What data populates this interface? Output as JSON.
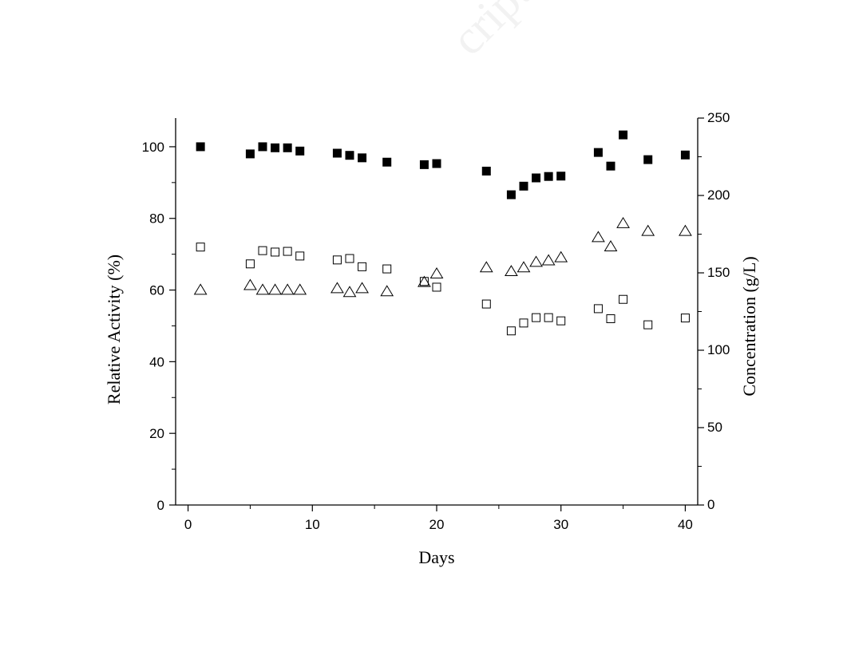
{
  "watermark": "cript",
  "chart_data": {
    "type": "scatter",
    "xlabel": "Days",
    "ylabel_left": "Relative Activity (%)",
    "ylabel_right": "Concentration (g/L)",
    "xlim": [
      -1,
      41
    ],
    "ylim_left": [
      0,
      108
    ],
    "ylim_right": [
      0,
      250
    ],
    "x_ticks": [
      0,
      10,
      20,
      30,
      40
    ],
    "y_left_ticks": [
      0,
      20,
      40,
      60,
      80,
      100
    ],
    "y_right_ticks": [
      0,
      50,
      100,
      150,
      200,
      250
    ],
    "grid": false,
    "legend": "none",
    "series": [
      {
        "marker": "filled-square",
        "axis": "left",
        "points": [
          [
            1,
            100
          ],
          [
            5,
            98
          ],
          [
            6,
            100
          ],
          [
            7,
            99.7
          ],
          [
            8,
            99.7
          ],
          [
            9,
            98.8
          ],
          [
            12,
            98.2
          ],
          [
            13,
            97.6
          ],
          [
            14,
            96.9
          ],
          [
            16,
            95.7
          ],
          [
            19,
            95
          ],
          [
            20,
            95.3
          ],
          [
            24,
            93.2
          ],
          [
            26,
            86.6
          ],
          [
            27,
            89
          ],
          [
            28,
            91.3
          ],
          [
            29,
            91.7
          ],
          [
            30,
            91.8
          ],
          [
            33,
            98.4
          ],
          [
            34,
            94.6
          ],
          [
            35,
            103.3
          ],
          [
            37,
            96.4
          ],
          [
            40,
            97.7
          ]
        ]
      },
      {
        "marker": "open-square",
        "axis": "left",
        "points": [
          [
            1,
            72
          ],
          [
            5,
            67.3
          ],
          [
            6,
            71
          ],
          [
            7,
            70.6
          ],
          [
            8,
            70.8
          ],
          [
            9,
            69.5
          ],
          [
            12,
            68.4
          ],
          [
            13,
            68.8
          ],
          [
            14,
            66.5
          ],
          [
            16,
            65.9
          ],
          [
            19,
            62.4
          ],
          [
            20,
            60.8
          ],
          [
            24,
            56.1
          ],
          [
            26,
            48.6
          ],
          [
            27,
            50.8
          ],
          [
            28,
            52.3
          ],
          [
            29,
            52.3
          ],
          [
            30,
            51.4
          ],
          [
            33,
            54.8
          ],
          [
            34,
            52
          ],
          [
            35,
            57.4
          ],
          [
            37,
            50.3
          ],
          [
            40,
            52.2
          ]
        ]
      },
      {
        "marker": "open-triangle",
        "axis": "right",
        "points": [
          [
            1,
            139
          ],
          [
            5,
            142
          ],
          [
            6,
            139
          ],
          [
            7,
            139
          ],
          [
            8,
            139
          ],
          [
            9,
            139
          ],
          [
            12,
            140
          ],
          [
            13,
            137.5
          ],
          [
            14,
            140
          ],
          [
            16,
            138
          ],
          [
            19,
            144
          ],
          [
            20,
            149.5
          ],
          [
            24,
            153.5
          ],
          [
            26,
            151
          ],
          [
            27,
            153.5
          ],
          [
            28,
            157
          ],
          [
            29,
            158
          ],
          [
            30,
            160
          ],
          [
            33,
            173
          ],
          [
            34,
            167
          ],
          [
            35,
            182
          ],
          [
            37,
            177
          ],
          [
            40,
            177
          ]
        ]
      }
    ]
  }
}
